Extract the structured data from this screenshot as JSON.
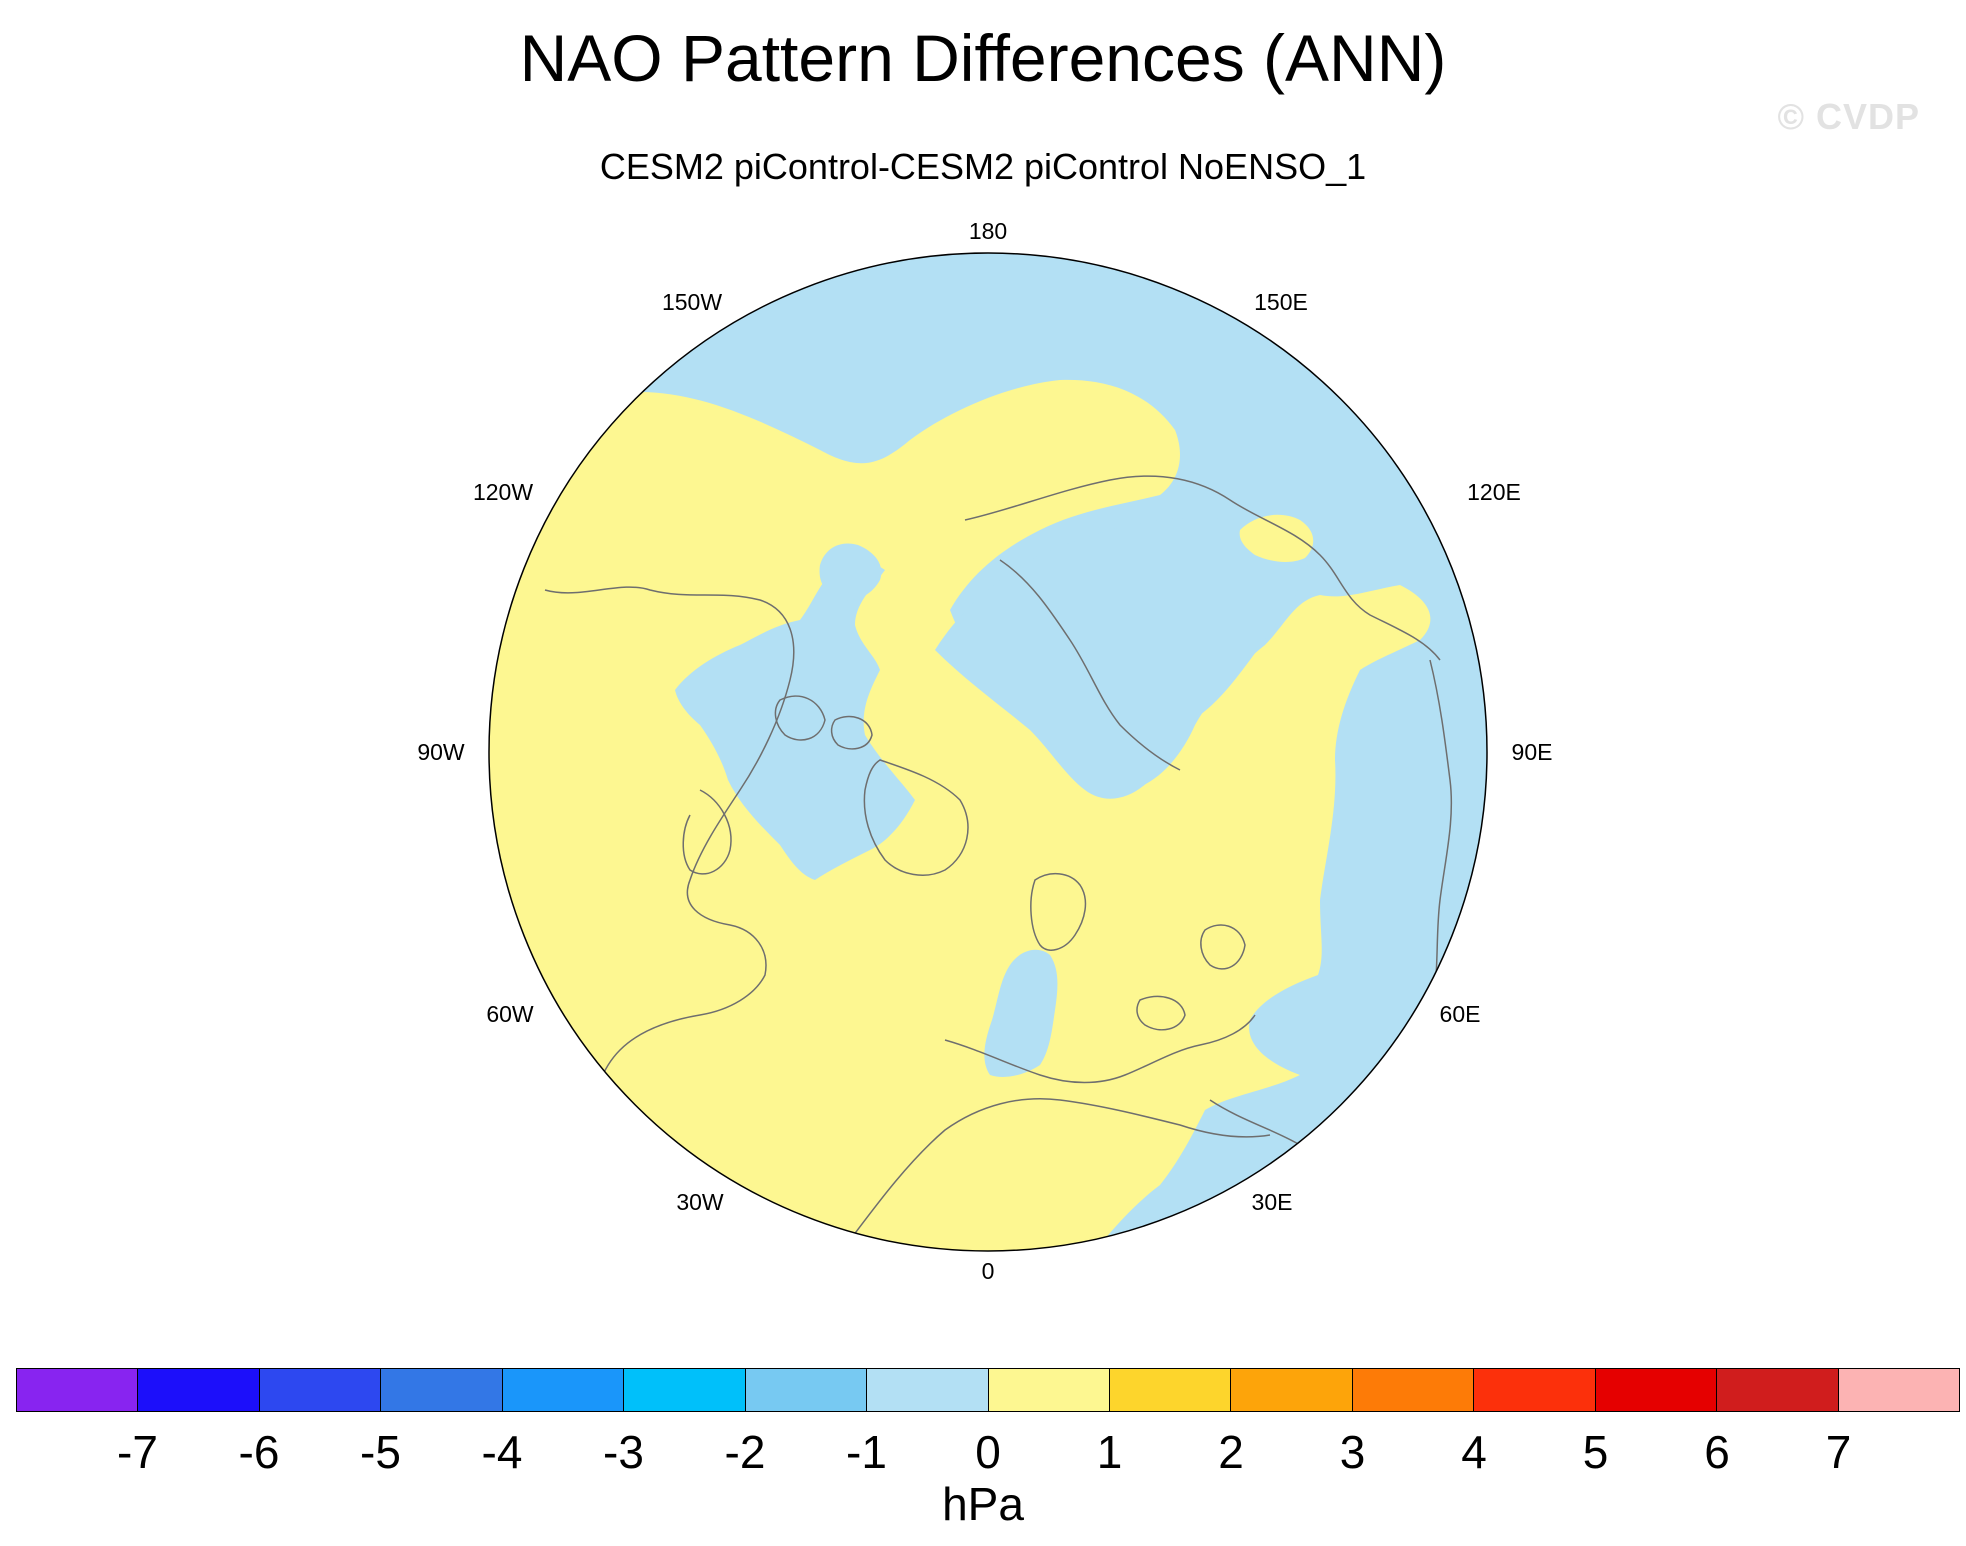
{
  "title": "NAO Pattern Differences (ANN)",
  "watermark": "© CVDP",
  "subtitle": "CESM2 piControl-CESM2 piControl NoENSO_1",
  "map": {
    "projection": "north-polar-stereographic",
    "longitude_labels": {
      "lon_180": "180",
      "lon_150e": "150E",
      "lon_120e": "120E",
      "lon_90e": "90E",
      "lon_60e": "60E",
      "lon_30e": "30E",
      "lon_0": "0",
      "lon_30w": "30W",
      "lon_60w": "60W",
      "lon_90w": "90W",
      "lon_120w": "120W",
      "lon_150w": "150W"
    },
    "field_colors": {
      "negative_-1_to_0": "#b3e0f4",
      "positive_0_to_1": "#fdf791"
    },
    "coastline_color": "#6e6e6e"
  },
  "colorbar": {
    "units": "hPa",
    "levels": [
      "-7",
      "-6",
      "-5",
      "-4",
      "-3",
      "-2",
      "-1",
      "0",
      "1",
      "2",
      "3",
      "4",
      "5",
      "6",
      "7"
    ],
    "colors": [
      "#8824f0",
      "#1c0ffa",
      "#2d48f0",
      "#3377e6",
      "#1a96fa",
      "#00c0fa",
      "#77c9f2",
      "#b3e0f4",
      "#fdf791",
      "#fdd52c",
      "#fda40a",
      "#fd7b07",
      "#fc300b",
      "#e50000",
      "#d01d1d",
      "#fcb3b3"
    ]
  }
}
